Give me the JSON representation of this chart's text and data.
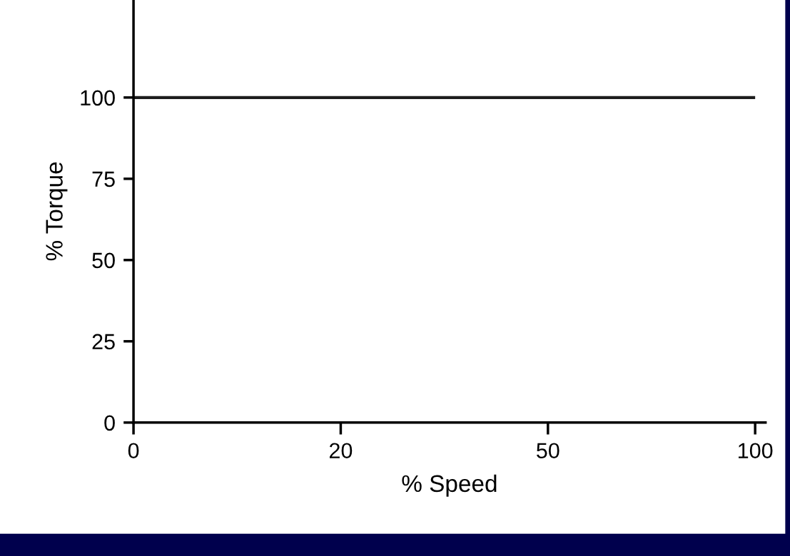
{
  "chart_data": {
    "type": "line",
    "xlabel": "% Speed",
    "ylabel": "% Torque",
    "categories": [
      "0",
      "20",
      "50",
      "100"
    ],
    "series": [
      {
        "color": "#1e1e1e",
        "values": [
          100,
          100,
          100,
          100
        ]
      }
    ],
    "ylim": [
      0,
      130
    ],
    "yticks": [
      0,
      25,
      50,
      75,
      100
    ],
    "grid": false,
    "legend": false,
    "marker": "none",
    "line_style": "solid"
  }
}
